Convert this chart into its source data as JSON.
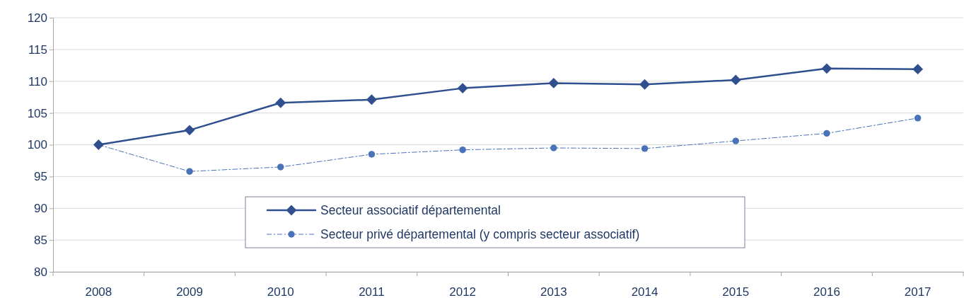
{
  "chart_data": {
    "type": "line",
    "categories": [
      "2008",
      "2009",
      "2010",
      "2011",
      "2012",
      "2013",
      "2014",
      "2015",
      "2016",
      "2017"
    ],
    "ylim": [
      80,
      120
    ],
    "yticks": [
      80,
      85,
      90,
      95,
      100,
      105,
      110,
      115,
      120
    ],
    "grid": "y",
    "legend": "bottom",
    "series": [
      {
        "name": "Secteur associatif départemental",
        "color": "#2f4f8f",
        "marker": "diamond",
        "line_style": "solid",
        "values": [
          100,
          102.3,
          106.6,
          107.1,
          108.9,
          109.7,
          109.5,
          110.2,
          112.0,
          111.9
        ]
      },
      {
        "name": "Secteur privé départemental (y compris secteur associatif)",
        "color": "#4a72b8",
        "marker": "circle",
        "line_style": "dashed",
        "values": [
          100,
          95.8,
          96.5,
          98.5,
          99.2,
          99.5,
          99.4,
          100.6,
          101.8,
          104.2
        ]
      }
    ]
  }
}
